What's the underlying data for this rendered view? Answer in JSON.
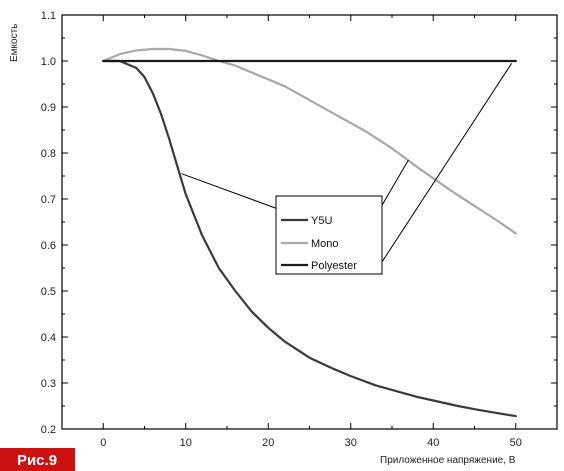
{
  "chart_data": {
    "type": "line",
    "title": "",
    "xlabel": "Приложенное напряжение, В",
    "ylabel": "Емкость",
    "xlim": [
      -5,
      55
    ],
    "ylim": [
      0.2,
      1.1
    ],
    "x_ticks": [
      "0",
      "10",
      "20",
      "30",
      "40",
      "50"
    ],
    "y_ticks": [
      "0.2",
      "0.3",
      "0.4",
      "0.5",
      "0.6",
      "0.7",
      "0.8",
      "0.9",
      "1.0",
      "1.1"
    ],
    "grid": false,
    "legend_position": "center-right",
    "series": [
      {
        "name": "Y5U",
        "color": "#3a3a3a",
        "x": [
          0,
          2,
          4,
          5,
          6,
          7,
          8,
          9,
          10,
          12,
          14,
          16,
          18,
          20,
          22,
          25,
          28,
          30,
          33,
          35,
          38,
          40,
          43,
          45,
          48,
          50
        ],
        "y": [
          1.0,
          1.0,
          0.985,
          0.965,
          0.93,
          0.885,
          0.83,
          0.77,
          0.71,
          0.62,
          0.55,
          0.5,
          0.455,
          0.42,
          0.39,
          0.355,
          0.33,
          0.315,
          0.295,
          0.285,
          0.27,
          0.262,
          0.25,
          0.243,
          0.234,
          0.228
        ]
      },
      {
        "name": "Mono",
        "color": "#a8a8a8",
        "x": [
          0,
          2,
          4,
          6,
          8,
          10,
          12,
          14,
          16,
          18,
          20,
          22,
          25,
          28,
          30,
          32,
          35,
          38,
          40,
          42,
          45,
          48,
          50
        ],
        "y": [
          1.0,
          1.015,
          1.023,
          1.026,
          1.026,
          1.022,
          1.012,
          1.0,
          0.99,
          0.975,
          0.96,
          0.945,
          0.915,
          0.885,
          0.865,
          0.845,
          0.81,
          0.77,
          0.745,
          0.72,
          0.685,
          0.65,
          0.625
        ]
      },
      {
        "name": "Polyester",
        "color": "#1a1a1a",
        "x": [
          0,
          50
        ],
        "y": [
          1.0,
          1.0
        ]
      }
    ],
    "annotations": [
      {
        "series": "Y5U",
        "data_point": [
          9.5,
          0.755
        ]
      },
      {
        "series": "Mono",
        "data_point": [
          37,
          0.785
        ]
      },
      {
        "series": "Polyester",
        "data_point": [
          49.5,
          0.995
        ]
      }
    ]
  },
  "fig_label": "Рис.9",
  "colors": {
    "badge": "#cc1111",
    "frame": "#000000",
    "background": "#ffffff"
  }
}
